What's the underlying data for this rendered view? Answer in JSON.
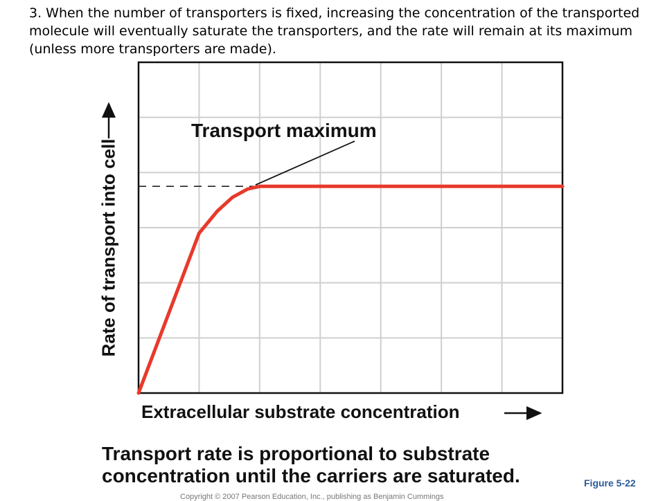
{
  "intro_text": "3.  When the number of transporters is fixed, increasing the concentration of the transported molecule will eventually saturate the transporters, and the rate will remain at its maximum (unless more transporters are made).",
  "caption": "Transport rate is proportional to substrate concentration until the carriers are saturated.",
  "figure_label": "Figure 5-22",
  "copyright": "Copyright © 2007 Pearson Education, Inc., publishing as Benjamin Cummings",
  "colors": {
    "curve": "#e8392b",
    "grid": "#cfcfcf",
    "frame": "#111111",
    "dashed": "#111111",
    "figure_label": "#2a5a9a"
  },
  "chart_data": {
    "type": "line",
    "title": "",
    "xlabel": "Extracellular substrate concentration",
    "ylabel": "Rate of transport into cell",
    "xlim": [
      0,
      7
    ],
    "ylim": [
      0,
      6
    ],
    "grid": true,
    "annotations": [
      {
        "text": "Transport maximum",
        "points_to": [
          2,
          3.75
        ]
      }
    ],
    "reference_lines": [
      {
        "type": "horizontal",
        "y": 3.75,
        "x_range": [
          0,
          2
        ],
        "style": "dashed"
      }
    ],
    "series": [
      {
        "x": [
          0,
          0.5,
          1.0,
          1.3,
          1.55,
          1.8,
          2.0,
          3.0,
          4.0,
          5.0,
          6.0,
          7.0
        ],
        "values": [
          0,
          1.45,
          2.9,
          3.3,
          3.55,
          3.7,
          3.75,
          3.75,
          3.75,
          3.75,
          3.75,
          3.75
        ]
      }
    ]
  }
}
